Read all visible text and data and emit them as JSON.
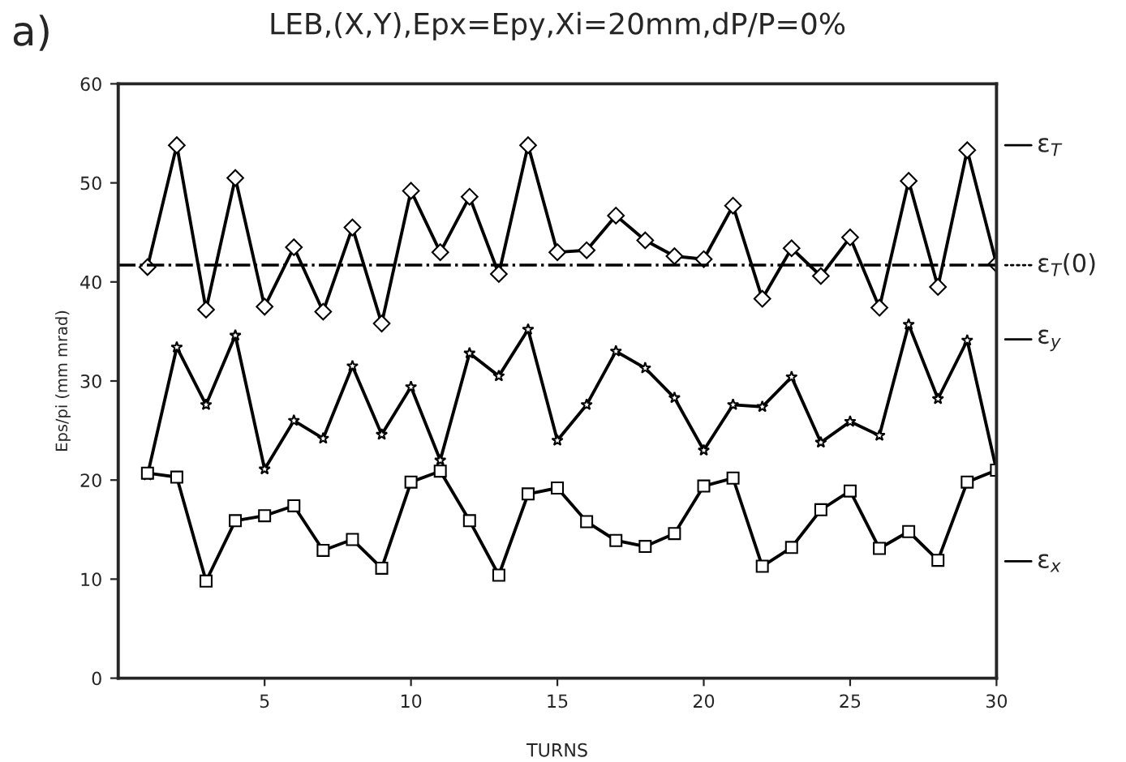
{
  "chart_data": {
    "type": "line",
    "title": "LEB,(X,Y),Epx=Epy,Xi=20mm,dP/P=0%",
    "xlabel": "TURNS",
    "ylabel": "Eps/pi (mm mrad)",
    "annotations": [
      "a)"
    ],
    "x": [
      1,
      2,
      3,
      4,
      5,
      6,
      7,
      8,
      9,
      10,
      11,
      12,
      13,
      14,
      15,
      16,
      17,
      18,
      19,
      20,
      21,
      22,
      23,
      24,
      25,
      26,
      27,
      28,
      29,
      30
    ],
    "series": [
      {
        "name": "ε$_{T}$",
        "color": "#000000",
        "marker": "diamond",
        "values": [
          41.5,
          53.8,
          37.2,
          50.5,
          37.5,
          43.5,
          37,
          45.5,
          35.8,
          49.2,
          43,
          48.6,
          40.8,
          53.8,
          43,
          43.2,
          46.7,
          44.2,
          42.6,
          42.3,
          47.7,
          38.3,
          43.4,
          40.6,
          44.5,
          37.4,
          50.2,
          39.5,
          53.3,
          41.8
        ]
      },
      {
        "name": "ε$_{y}$",
        "color": "#000000",
        "marker": "star",
        "values": [
          20.5,
          33.4,
          27.6,
          34.6,
          21.1,
          26,
          24.2,
          31.5,
          24.6,
          29.4,
          22,
          32.8,
          30.5,
          35.2,
          24,
          27.6,
          33,
          31.3,
          28.3,
          23,
          27.6,
          27.4,
          30.4,
          23.8,
          25.9,
          24.5,
          35.7,
          28.2,
          34.1,
          21
        ]
      },
      {
        "name": "ε$_{x}$",
        "color": "#000000",
        "marker": "square",
        "values": [
          20.7,
          20.3,
          9.8,
          15.9,
          16.4,
          17.4,
          12.9,
          14,
          11.1,
          19.8,
          20.9,
          15.9,
          10.4,
          18.6,
          19.2,
          15.8,
          13.9,
          13.3,
          14.6,
          19.4,
          20.2,
          11.3,
          13.2,
          17,
          18.9,
          13.1,
          14.8,
          11.9,
          19.8,
          21
        ]
      }
    ],
    "ref_lines": [
      {
        "axis": "y",
        "value": 41.7,
        "label": "ε$_{T}$(0)",
        "line_style": "dashdot",
        "color": "#000000"
      }
    ],
    "xlim": [
      0,
      30
    ],
    "xticks": [
      5,
      10,
      15,
      20,
      25,
      30
    ],
    "ylim": [
      0,
      60
    ],
    "yticks": [
      0,
      10,
      20,
      30,
      40,
      50,
      60
    ],
    "grid": false,
    "legend": "right",
    "line_style": "solid"
  }
}
